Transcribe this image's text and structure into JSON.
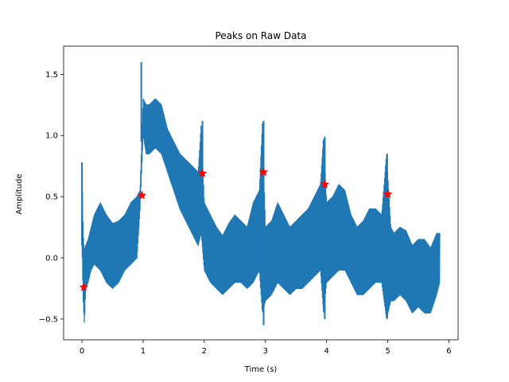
{
  "chart_data": {
    "type": "line",
    "title": "Peaks on Raw Data",
    "xlabel": "Time (s)",
    "ylabel": "Amplitude",
    "xlim": [
      -0.3,
      6.15
    ],
    "ylim": [
      -0.67,
      1.73
    ],
    "xticks": [
      "0",
      "1",
      "2",
      "3",
      "4",
      "5",
      "6"
    ],
    "xtick_values": [
      0,
      1,
      2,
      3,
      4,
      5,
      6
    ],
    "yticks": [
      "−0.5",
      "0.0",
      "0.5",
      "1.0",
      "1.5"
    ],
    "ytick_values": [
      -0.5,
      0.0,
      0.5,
      1.0,
      1.5
    ],
    "grid": false,
    "series": [
      {
        "color": "#1f77b4",
        "envelope": {
          "t": [
            0.0,
            0.02,
            0.04,
            0.06,
            0.1,
            0.15,
            0.2,
            0.3,
            0.4,
            0.5,
            0.6,
            0.7,
            0.8,
            0.9,
            0.95,
            1.0,
            1.05,
            1.1,
            1.2,
            1.3,
            1.4,
            1.5,
            1.6,
            1.7,
            1.8,
            1.9,
            1.95,
            2.0,
            2.1,
            2.2,
            2.3,
            2.4,
            2.5,
            2.6,
            2.7,
            2.8,
            2.9,
            2.95,
            3.0,
            3.1,
            3.2,
            3.3,
            3.4,
            3.5,
            3.6,
            3.7,
            3.8,
            3.9,
            3.95,
            4.0,
            4.1,
            4.2,
            4.3,
            4.4,
            4.5,
            4.6,
            4.7,
            4.8,
            4.9,
            4.98,
            5.05,
            5.1,
            5.2,
            5.3,
            5.4,
            5.5,
            5.6,
            5.7,
            5.8,
            5.85
          ],
          "upper": [
            0.78,
            0.2,
            0.05,
            0.1,
            0.15,
            0.25,
            0.35,
            0.45,
            0.35,
            0.28,
            0.3,
            0.35,
            0.45,
            0.5,
            0.55,
            1.3,
            1.25,
            1.25,
            1.3,
            1.25,
            1.05,
            0.95,
            0.85,
            0.8,
            0.75,
            0.7,
            1.1,
            0.45,
            0.35,
            0.25,
            0.18,
            0.28,
            0.35,
            0.3,
            0.25,
            0.45,
            0.55,
            1.1,
            0.25,
            0.3,
            0.45,
            0.35,
            0.25,
            0.3,
            0.35,
            0.4,
            0.5,
            0.6,
            1.0,
            0.45,
            0.5,
            0.6,
            0.55,
            0.35,
            0.25,
            0.3,
            0.4,
            0.4,
            0.35,
            0.85,
            0.25,
            0.2,
            0.25,
            0.22,
            0.1,
            0.15,
            0.15,
            0.08,
            0.2,
            0.2
          ],
          "lower": [
            0.1,
            -0.35,
            -0.55,
            -0.25,
            -0.2,
            -0.1,
            -0.05,
            -0.1,
            -0.2,
            -0.25,
            -0.2,
            -0.1,
            -0.05,
            0.0,
            0.4,
            1.0,
            0.85,
            0.85,
            0.9,
            0.85,
            0.7,
            0.55,
            0.4,
            0.3,
            0.2,
            0.1,
            0.2,
            -0.1,
            -0.2,
            -0.25,
            -0.3,
            -0.25,
            -0.2,
            -0.2,
            -0.25,
            -0.2,
            -0.1,
            -0.45,
            -0.35,
            -0.3,
            -0.2,
            -0.25,
            -0.3,
            -0.25,
            -0.25,
            -0.2,
            -0.15,
            -0.1,
            -0.45,
            -0.2,
            -0.15,
            -0.1,
            -0.1,
            -0.2,
            -0.3,
            -0.3,
            -0.25,
            -0.2,
            -0.2,
            -0.5,
            -0.35,
            -0.35,
            -0.3,
            -0.35,
            -0.45,
            -0.4,
            -0.45,
            -0.45,
            -0.3,
            -0.2
          ]
        }
      }
    ],
    "peaks": {
      "color": "#ff0000",
      "marker": "star",
      "x": [
        0.03,
        0.98,
        1.97,
        2.97,
        3.97,
        5.0
      ],
      "y": [
        -0.24,
        0.51,
        0.69,
        0.7,
        0.6,
        0.52
      ]
    }
  }
}
